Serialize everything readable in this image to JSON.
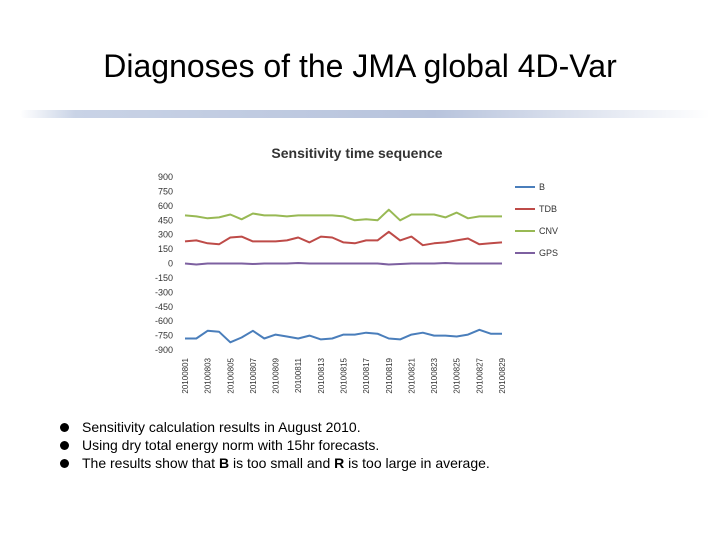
{
  "slide": {
    "title": "Diagnoses of the JMA global 4D-Var"
  },
  "bullets": [
    {
      "text": "Sensitivity calculation results in August 2010."
    },
    {
      "text": "Using dry total energy norm with 15hr forecasts."
    },
    {
      "pre": "The results show that ",
      "b1": "B",
      "mid": " is too small and ",
      "b2": "R",
      "post": " is too large in average."
    }
  ],
  "chart_data": {
    "type": "line",
    "title": "Sensitivity time sequence",
    "xlabel": "",
    "ylabel": "",
    "ylim": [
      -900,
      900
    ],
    "yticks": [
      "900",
      "750",
      "600",
      "450",
      "300",
      "150",
      "0",
      "-150",
      "-300",
      "-450",
      "-600",
      "-750",
      "-900"
    ],
    "xtick_labels": [
      "20100801",
      "20100803",
      "20100805",
      "20100807",
      "20100809",
      "20100811",
      "20100813",
      "20100815",
      "20100817",
      "20100819",
      "20100821",
      "20100823",
      "20100825",
      "20100827",
      "20100829"
    ],
    "x": [
      1,
      2,
      3,
      4,
      5,
      6,
      7,
      8,
      9,
      10,
      11,
      12,
      13,
      14,
      15,
      16,
      17,
      18,
      19,
      20,
      21,
      22,
      23,
      24,
      25,
      26,
      27,
      28,
      29
    ],
    "grid": false,
    "legend_position": "right",
    "series": [
      {
        "name": "B",
        "color": "#4a7ebb",
        "values": [
          -780,
          -780,
          -700,
          -710,
          -820,
          -770,
          -700,
          -780,
          -740,
          -760,
          -780,
          -750,
          -790,
          -780,
          -740,
          -740,
          -720,
          -730,
          -780,
          -790,
          -740,
          -720,
          -750,
          -750,
          -760,
          -740,
          -690,
          -730,
          -730
        ]
      },
      {
        "name": "TDB",
        "color": "#be4b48",
        "values": [
          230,
          240,
          210,
          200,
          270,
          280,
          230,
          230,
          230,
          240,
          270,
          220,
          280,
          270,
          220,
          210,
          240,
          240,
          330,
          240,
          280,
          190,
          210,
          220,
          240,
          260,
          200,
          210,
          220
        ]
      },
      {
        "name": "CNV",
        "color": "#98b954",
        "values": [
          500,
          490,
          470,
          480,
          510,
          460,
          520,
          500,
          500,
          490,
          500,
          500,
          500,
          500,
          490,
          450,
          460,
          450,
          560,
          450,
          510,
          510,
          510,
          480,
          530,
          470,
          490,
          490,
          490
        ]
      },
      {
        "name": "GPS",
        "color": "#7d60a0",
        "values": [
          0,
          -10,
          0,
          0,
          0,
          0,
          -5,
          0,
          0,
          0,
          5,
          0,
          0,
          0,
          0,
          0,
          0,
          0,
          -10,
          -5,
          0,
          0,
          0,
          5,
          0,
          0,
          0,
          0,
          0
        ]
      }
    ]
  }
}
